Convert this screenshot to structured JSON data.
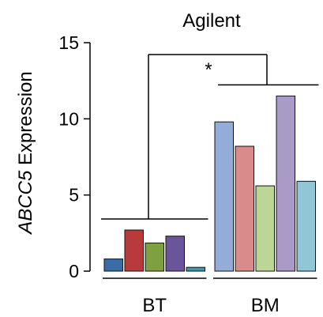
{
  "chart_data": {
    "type": "bar",
    "title": "Agilent",
    "ylabel_gene": "ABCC5",
    "ylabel_rest": " Expression",
    "ylim": [
      0,
      15
    ],
    "yticks": [
      0,
      5,
      10,
      15
    ],
    "grid": false,
    "groups": [
      {
        "label": "BT",
        "values": [
          0.8,
          2.7,
          1.85,
          2.3,
          0.25
        ],
        "colors": [
          "#3a6da8",
          "#b83a3a",
          "#7ea040",
          "#6a559a",
          "#3a9ab0"
        ]
      },
      {
        "label": "BM",
        "values": [
          9.8,
          8.2,
          5.6,
          11.5,
          5.9
        ],
        "colors": [
          "#93acd8",
          "#d98b8b",
          "#bcd696",
          "#a99ac8",
          "#90c6d6"
        ]
      }
    ],
    "significance": {
      "symbol": "*"
    }
  }
}
